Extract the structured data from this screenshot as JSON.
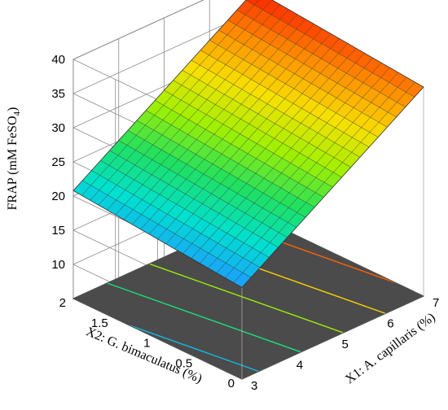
{
  "chart_data": {
    "type": "surface3d",
    "zlabel": "FRAP (mM FeSO",
    "zlabel_sub": "4",
    "zlabel_close": ")",
    "xlabel": "X1: A. capillaris (%)",
    "ylabel": "X2: G. bimaculatus (%)",
    "x_range": [
      3,
      7
    ],
    "y_range": [
      0,
      2
    ],
    "z_range": [
      5,
      40
    ],
    "x_ticks": [
      "3",
      "4",
      "5",
      "6",
      "7"
    ],
    "y_ticks": [
      "0",
      "0.5",
      "1",
      "1.5",
      "2"
    ],
    "z_ticks": [
      "10",
      "15",
      "20",
      "25",
      "30",
      "35",
      "40"
    ],
    "surface_model": {
      "intercept": 5.5,
      "x1_coef": 4.3,
      "x2_coef": 1.2
    },
    "corners": [
      {
        "x1": 3,
        "x2": 0,
        "frap": 18.4
      },
      {
        "x1": 3,
        "x2": 2,
        "frap": 20.8
      },
      {
        "x1": 7,
        "x2": 0,
        "frap": 35.6
      },
      {
        "x1": 7,
        "x2": 2,
        "frap": 38.0
      }
    ],
    "floor_contours": [
      20,
      24,
      28,
      32,
      36
    ],
    "grid": "on",
    "colormap": [
      "#1e9bff",
      "#00e0d0",
      "#20e060",
      "#a0f000",
      "#f8e000",
      "#ff8c00",
      "#ff2200"
    ]
  }
}
